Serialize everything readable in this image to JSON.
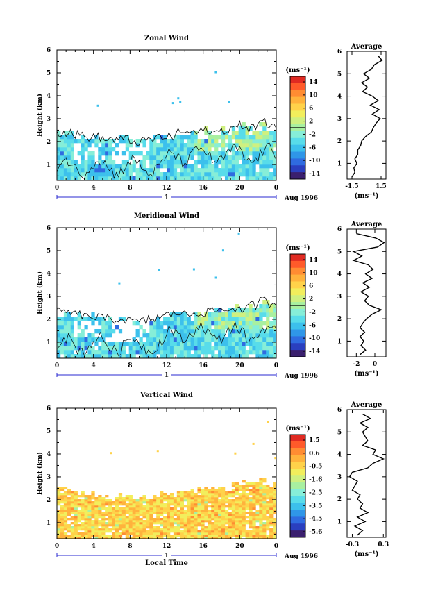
{
  "figure": {
    "xlabel": "Local Time",
    "date_label": "Aug 1996",
    "day_label": "1",
    "ylabel": "Height (km)",
    "unit_label": "(ms⁻¹)",
    "avg_title": "Average",
    "x_ticks": [
      "0",
      "4",
      "8",
      "12",
      "16",
      "20",
      "0"
    ],
    "y_ticks": [
      "1",
      "2",
      "3",
      "4",
      "5",
      "6"
    ]
  },
  "colorscale": [
    "#3a1f6e",
    "#2a3fbf",
    "#2f6be0",
    "#2f96e8",
    "#3cc0ec",
    "#58dcea",
    "#86eed8",
    "#a8f0a0",
    "#cff080",
    "#f2ee5c",
    "#ffd24a",
    "#ffb23c",
    "#ff8c32",
    "#ff5a2a",
    "#e02a22"
  ],
  "chart_data": [
    {
      "type": "heatmap",
      "title": "Zonal Wind",
      "xlabel": "",
      "ylabel": "Height (km)",
      "xlim": [
        0,
        24
      ],
      "ylim": [
        0.3,
        6
      ],
      "colorbar_ticks": [
        "14",
        "10",
        "6",
        "2",
        "-2",
        "-6",
        "-10",
        "-14"
      ],
      "colorbar_range": [
        -16,
        16
      ],
      "data_top_km": [
        2.5,
        2.5,
        2.4,
        2.3,
        2.3,
        2.2,
        2.2,
        2.2,
        2.1,
        2.1,
        2.2,
        2.3,
        2.3,
        2.5,
        2.5,
        2.5,
        2.6,
        2.5,
        2.6,
        2.7,
        2.8,
        2.7,
        3.0,
        2.7
      ],
      "average_profile": {
        "xlabel": "(ms⁻¹)",
        "x_ticks": [
          "-1.5",
          "1.5"
        ],
        "xlim": [
          -2,
          2
        ],
        "height_km": [
          0.4,
          0.6,
          0.8,
          1.0,
          1.2,
          1.4,
          1.6,
          1.8,
          2.0,
          2.2,
          2.4,
          2.6,
          2.8,
          3.0,
          3.2,
          3.4,
          3.6,
          3.8,
          4.0,
          4.2,
          4.4,
          4.6,
          4.8,
          5.0,
          5.2,
          5.4,
          5.6,
          5.8
        ],
        "values": [
          -1.5,
          -1.2,
          -1.3,
          -1.0,
          -1.2,
          -0.9,
          -0.9,
          -0.6,
          -0.5,
          -0.1,
          0.5,
          0.7,
          1.0,
          1.4,
          0.6,
          1.3,
          0.4,
          1.2,
          0.6,
          -0.4,
          0.1,
          -0.5,
          0.3,
          -0.3,
          0.5,
          0.8,
          1.6,
          1.2
        ]
      }
    },
    {
      "type": "heatmap",
      "title": "Meridional Wind",
      "xlabel": "",
      "ylabel": "Height (km)",
      "xlim": [
        0,
        24
      ],
      "ylim": [
        0.3,
        6
      ],
      "colorbar_ticks": [
        "14",
        "10",
        "6",
        "2",
        "-2",
        "-6",
        "-10",
        "-14"
      ],
      "colorbar_range": [
        -16,
        16
      ],
      "data_top_km": [
        2.4,
        2.4,
        2.3,
        2.2,
        2.2,
        2.1,
        2.1,
        2.1,
        2.0,
        2.0,
        2.1,
        2.2,
        2.3,
        2.4,
        2.3,
        2.4,
        2.4,
        2.5,
        2.5,
        2.6,
        2.5,
        2.7,
        2.9,
        2.8
      ],
      "average_profile": {
        "xlabel": "(ms⁻¹)",
        "x_ticks": [
          "-2",
          "0"
        ],
        "xlim": [
          -3,
          1.2
        ],
        "height_km": [
          0.4,
          0.6,
          0.8,
          1.0,
          1.2,
          1.4,
          1.6,
          1.8,
          2.0,
          2.2,
          2.4,
          2.6,
          2.8,
          3.0,
          3.2,
          3.4,
          3.6,
          3.8,
          4.0,
          4.2,
          4.4,
          4.6,
          4.8,
          5.0,
          5.2,
          5.4,
          5.6,
          5.8
        ],
        "values": [
          -1.6,
          -1.0,
          -1.5,
          -1.2,
          -1.6,
          -1.1,
          -1.6,
          -1.3,
          -0.9,
          -0.3,
          0.7,
          -0.6,
          -1.1,
          -0.7,
          -1.5,
          -0.6,
          -1.3,
          -0.3,
          -1.0,
          -0.2,
          -0.7,
          -2.3,
          -1.4,
          -2.3,
          0.3,
          1.0,
          0.1,
          -2.0
        ]
      }
    },
    {
      "type": "heatmap",
      "title": "Vertical Wind",
      "xlabel": "Local Time",
      "ylabel": "Height (km)",
      "xlim": [
        0,
        24
      ],
      "ylim": [
        0.3,
        6
      ],
      "colorbar_ticks": [
        "1.5",
        "0.6",
        "-0.5",
        "-1.6",
        "-2.5",
        "-3.5",
        "-4.5",
        "-5.6"
      ],
      "colorbar_range": [
        -6,
        2
      ],
      "data_top_km": [
        2.5,
        2.5,
        2.4,
        2.3,
        2.3,
        2.2,
        2.2,
        2.2,
        2.1,
        2.1,
        2.2,
        2.3,
        2.3,
        2.5,
        2.5,
        2.5,
        2.6,
        2.5,
        2.6,
        2.7,
        2.8,
        2.7,
        3.0,
        2.7
      ],
      "average_profile": {
        "xlabel": "(ms⁻¹)",
        "x_ticks": [
          "-0.3",
          "0.3"
        ],
        "xlim": [
          -0.4,
          0.35
        ],
        "height_km": [
          0.4,
          0.6,
          0.8,
          1.0,
          1.2,
          1.4,
          1.6,
          1.8,
          2.0,
          2.2,
          2.4,
          2.6,
          2.8,
          3.0,
          3.2,
          3.4,
          3.6,
          3.8,
          4.0,
          4.2,
          4.4,
          4.6,
          4.8,
          5.0,
          5.2,
          5.4,
          5.6,
          5.8
        ],
        "values": [
          -0.2,
          -0.1,
          -0.25,
          -0.05,
          -0.2,
          0.0,
          -0.15,
          -0.1,
          -0.2,
          -0.15,
          -0.3,
          -0.25,
          -0.2,
          -0.35,
          -0.3,
          0.0,
          0.1,
          0.3,
          0.1,
          0.15,
          -0.1,
          0.0,
          -0.05,
          -0.1,
          0.0,
          -0.15,
          0.05,
          -0.1
        ]
      }
    }
  ]
}
